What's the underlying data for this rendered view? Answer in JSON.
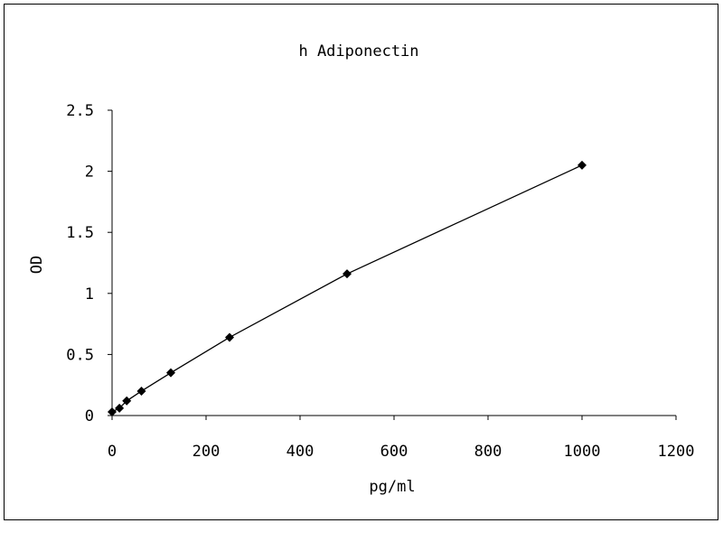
{
  "chart_data": {
    "type": "line",
    "title": "h Adiponectin",
    "xlabel": "pg/ml",
    "ylabel": "OD",
    "xlim": [
      0,
      1200
    ],
    "ylim": [
      0,
      2.5
    ],
    "xticks": [
      0,
      200,
      400,
      600,
      800,
      1000,
      1200
    ],
    "yticks": [
      0,
      0.5,
      1,
      1.5,
      2,
      2.5
    ],
    "xtick_labels": [
      "0",
      "200",
      "400",
      "600",
      "800",
      "1000",
      "1200"
    ],
    "ytick_labels": [
      "0",
      "0.5",
      "1",
      "1.5",
      "2",
      "2.5"
    ],
    "grid": false,
    "marker": "diamond",
    "series": [
      {
        "x": [
          0,
          15.6,
          31.2,
          62.5,
          125,
          250,
          500,
          1000
        ],
        "values": [
          0.03,
          0.06,
          0.12,
          0.2,
          0.35,
          0.64,
          1.16,
          2.05
        ]
      }
    ],
    "colors": {
      "line": "#000000",
      "marker": "#000000",
      "background": "#ffffff"
    }
  }
}
